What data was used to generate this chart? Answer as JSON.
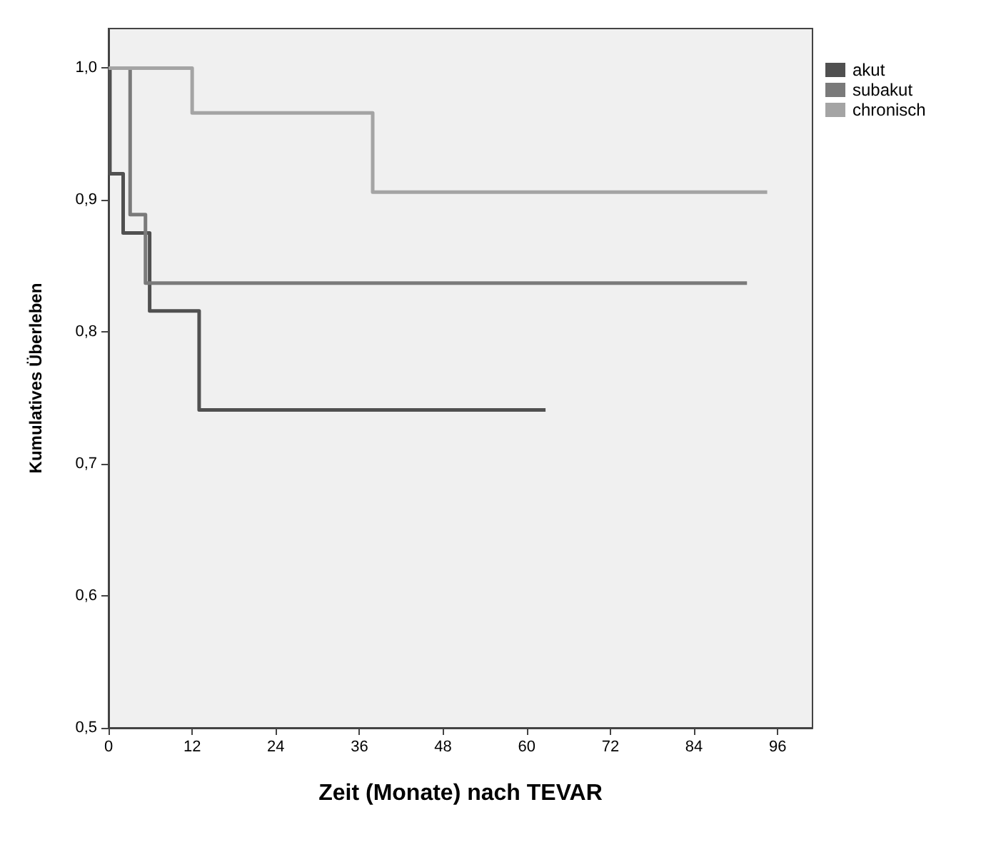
{
  "chart_data": {
    "type": "step",
    "xlabel": "Zeit (Monate) nach TEVAR",
    "ylabel": "Kumulatives Überleben",
    "series": [
      {
        "name": "akut",
        "color": "#505050",
        "x": [
          0,
          0.2,
          2.1,
          5.9,
          13.0,
          62.7
        ],
        "values": [
          1.0,
          0.92,
          0.875,
          0.816,
          0.741,
          0.741
        ]
      },
      {
        "name": "subakut",
        "color": "#7a7a7a",
        "x": [
          0,
          3.1,
          5.3,
          91.6
        ],
        "values": [
          1.0,
          0.889,
          0.837,
          0.837
        ]
      },
      {
        "name": "chronisch",
        "color": "#a4a4a4",
        "x": [
          0,
          12.0,
          37.9,
          94.5
        ],
        "values": [
          1.0,
          0.966,
          0.906,
          0.906
        ]
      }
    ],
    "xlim": [
      0,
      101
    ],
    "xticks": [
      0,
      12,
      24,
      36,
      48,
      60,
      72,
      84,
      96
    ],
    "ylim": [
      0.5,
      1.03
    ],
    "yticks": [
      {
        "value": 0.5,
        "label": "0,5"
      },
      {
        "value": 0.6,
        "label": "0,6"
      },
      {
        "value": 0.7,
        "label": "0,7"
      },
      {
        "value": 0.8,
        "label": "0,8"
      },
      {
        "value": 0.9,
        "label": "0,9"
      },
      {
        "value": 1.0,
        "label": "1,0"
      }
    ],
    "grid": false,
    "legend": "top right",
    "marker": "none",
    "line_style": "solid"
  }
}
